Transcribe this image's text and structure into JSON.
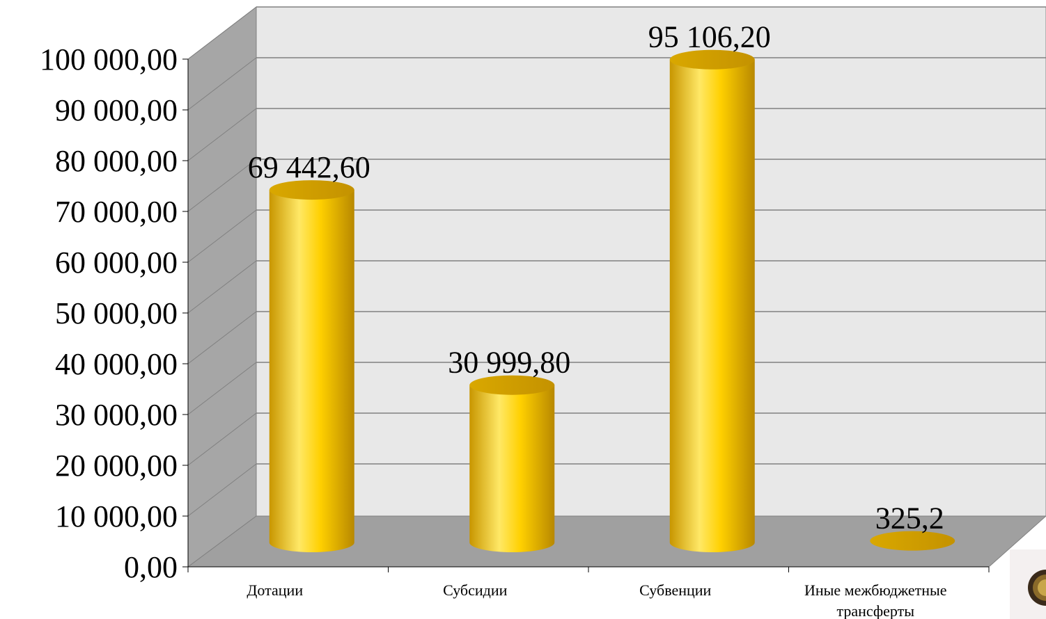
{
  "chart_data": {
    "type": "bar",
    "categories": [
      "Дотации",
      "Субсидии",
      "Субвенции",
      "Иные межбюджетные трансферты"
    ],
    "values": [
      69442.6,
      30999.8,
      95106.2,
      325.2
    ],
    "data_labels": [
      "69 442,60",
      "30 999,80",
      "95 106,20",
      "325,2"
    ],
    "ylim": [
      0,
      100000
    ],
    "yticks": [
      0,
      10000,
      20000,
      30000,
      40000,
      50000,
      60000,
      70000,
      80000,
      90000,
      100000
    ],
    "ytick_labels": [
      "0,00",
      "10 000,00",
      "20 000,00",
      "30 000,00",
      "40 000,00",
      "50 000,00",
      "60 000,00",
      "70 000,00",
      "80 000,00",
      "90 000,00",
      "100 000,00"
    ],
    "grid": true,
    "style": "3d-cylinder",
    "colors": {
      "bar": "#FFD000",
      "bar_dark": "#C89600",
      "bar_light": "#FFE866",
      "back_wall": "#E8E8E8",
      "side_wall": "#A6A6A6",
      "floor": "#A0A0A0",
      "grid": "#808080"
    }
  }
}
